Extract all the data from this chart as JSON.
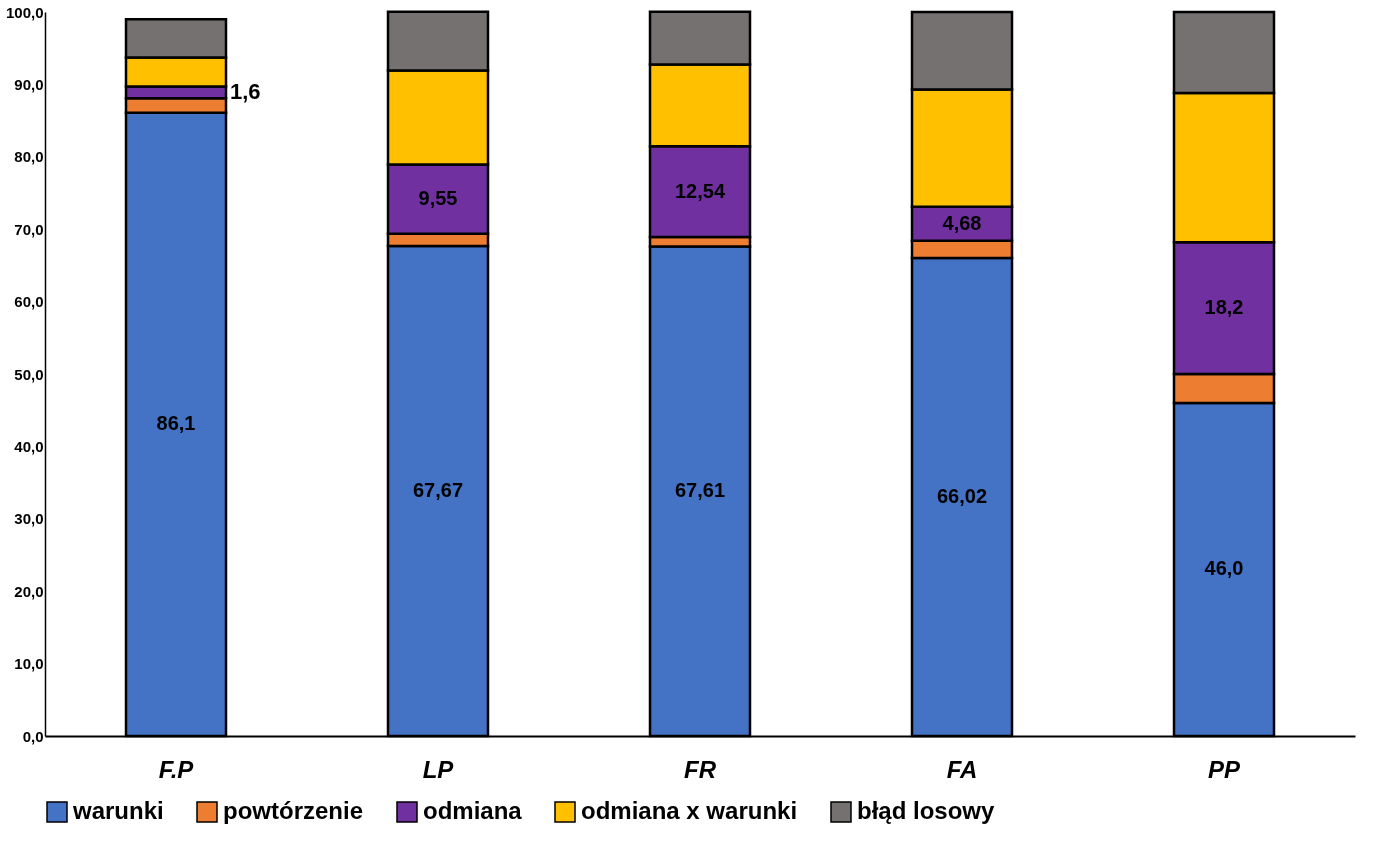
{
  "chart_data": {
    "type": "bar",
    "stacked": true,
    "categories": [
      "F.P",
      "LP",
      "FR",
      "FA",
      "PP"
    ],
    "series": [
      {
        "name": "warunki",
        "color": "#4472c4",
        "values": [
          86.1,
          67.67,
          67.61,
          66.02,
          46.0
        ],
        "value_labels": [
          "86,1",
          "67,67",
          "67,61",
          "66,02",
          "46,0"
        ]
      },
      {
        "name": "powtórzenie",
        "color": "#ed7d31",
        "values": [
          2.0,
          1.7,
          1.3,
          2.4,
          4.0
        ]
      },
      {
        "name": "odmiana",
        "color": "#7030a0",
        "values": [
          1.6,
          9.55,
          12.54,
          4.68,
          18.2
        ],
        "value_labels": [
          "1,6",
          "9,55",
          "12,54",
          "4,68",
          "18,2"
        ]
      },
      {
        "name": "odmiana x warunki",
        "color": "#ffc000",
        "values": [
          4.0,
          13.0,
          11.3,
          16.2,
          20.6
        ]
      },
      {
        "name": "błąd losowy",
        "color": "#767171",
        "values": [
          5.3,
          8.1,
          7.3,
          10.7,
          11.2
        ]
      }
    ],
    "ylim": [
      0,
      100
    ],
    "yticks": [
      {
        "value": 0,
        "label": "0,0"
      },
      {
        "value": 10,
        "label": "10,0"
      },
      {
        "value": 20,
        "label": "20,0"
      },
      {
        "value": 30,
        "label": "30,0"
      },
      {
        "value": 40,
        "label": "40,0"
      },
      {
        "value": 50,
        "label": "50,0"
      },
      {
        "value": 60,
        "label": "60,0"
      },
      {
        "value": 70,
        "label": "70,0"
      },
      {
        "value": 80,
        "label": "80,0"
      },
      {
        "value": 90,
        "label": "90,0"
      },
      {
        "value": 100,
        "label": "100,0"
      }
    ],
    "grid": false,
    "legend": "bottom"
  }
}
